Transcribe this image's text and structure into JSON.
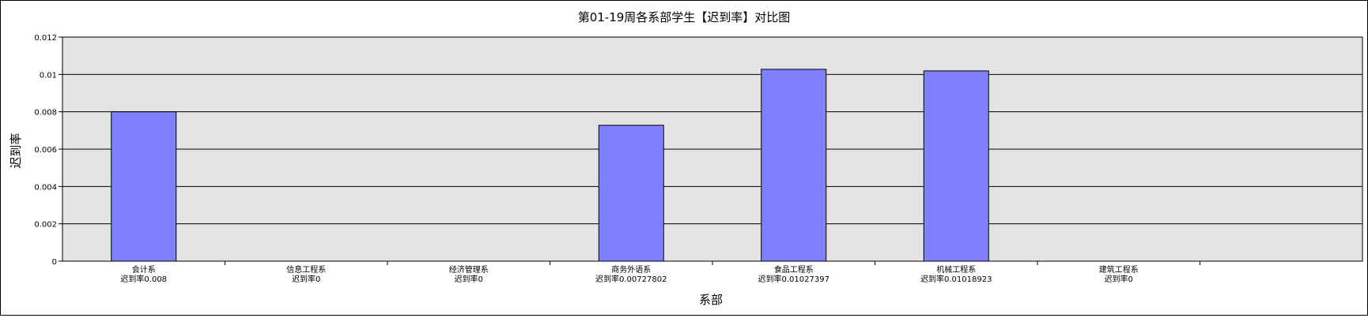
{
  "chart_data": {
    "type": "bar",
    "title": "第01-19周各系部学生【迟到率】对比图",
    "xlabel": "系部",
    "ylabel": "迟到率",
    "categories": [
      "会计系",
      "信息工程系",
      "经济管理系",
      "商务外语系",
      "食品工程系",
      "机械工程系",
      "建筑工程系"
    ],
    "category_sublabels": [
      "迟到率0.008",
      "迟到率0",
      "迟到率0",
      "迟到率0.00727802",
      "迟到率0.01027397",
      "迟到率0.01018923",
      "迟到率0"
    ],
    "series": [
      {
        "values": [
          0.008,
          0,
          0,
          0.00727802,
          0.01027397,
          0.01018923,
          0
        ]
      }
    ],
    "ylim": [
      0,
      0.012
    ],
    "yticks": [
      "0",
      "0.002",
      "0.004",
      "0.006",
      "0.008",
      "0.01",
      "0.012"
    ],
    "grid": true,
    "colors": {
      "bar": "#8080ff",
      "plot_bg": "#e3e3e3",
      "border": "#000000"
    }
  }
}
